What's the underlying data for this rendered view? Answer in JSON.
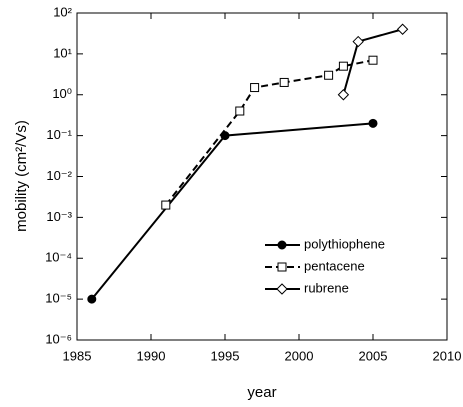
{
  "chart_data": {
    "type": "line",
    "xlabel": "year",
    "ylabel": "mobility (cm²/Vs)",
    "xlim": [
      1985,
      2010
    ],
    "xticks": [
      1985,
      1990,
      1995,
      2000,
      2005,
      2010
    ],
    "ylim": [
      1e-06,
      100
    ],
    "log_y": true,
    "yticks": [
      {
        "value": 1e-06,
        "label": "10⁻⁶"
      },
      {
        "value": 1e-05,
        "label": "10⁻⁵"
      },
      {
        "value": 0.0001,
        "label": "10⁻⁴"
      },
      {
        "value": 0.001,
        "label": "10⁻³"
      },
      {
        "value": 0.01,
        "label": "10⁻²"
      },
      {
        "value": 0.1,
        "label": "10⁻¹"
      },
      {
        "value": 1,
        "label": "10⁰"
      },
      {
        "value": 10,
        "label": "10¹"
      },
      {
        "value": 100,
        "label": "10²"
      }
    ],
    "legend": "lower right",
    "series": [
      {
        "name": "polythiophene",
        "color": "#000000",
        "marker": "circle",
        "marker_fill": "#000000",
        "dash": "solid",
        "x": [
          1986,
          1995,
          2005
        ],
        "values": [
          1e-05,
          0.1,
          0.2
        ]
      },
      {
        "name": "pentacene",
        "color": "#000000",
        "marker": "square",
        "marker_fill": "#ffffff",
        "dash": "dashed",
        "x": [
          1991,
          1996,
          1997,
          1999,
          2002,
          2003,
          2005
        ],
        "values": [
          0.002,
          0.4,
          1.5,
          2,
          3,
          5,
          7
        ]
      },
      {
        "name": "rubrene",
        "color": "#000000",
        "marker": "diamond",
        "marker_fill": "#ffffff",
        "dash": "solid",
        "x": [
          2003,
          2004,
          2007
        ],
        "values": [
          1,
          20,
          40
        ]
      }
    ]
  }
}
